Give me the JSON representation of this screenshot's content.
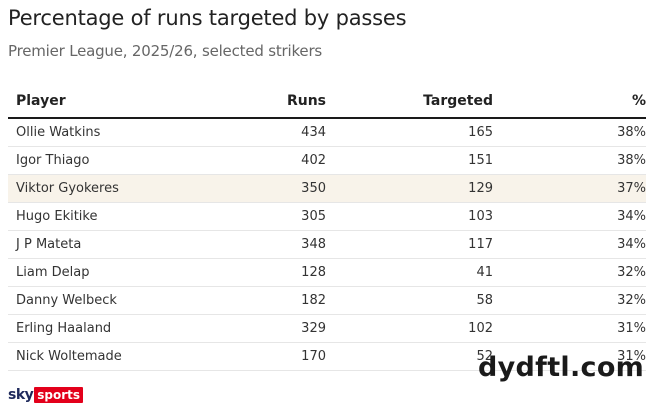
{
  "chart_data": {
    "type": "table",
    "title": "Percentage of runs targeted by passes",
    "subtitle": "Premier League, 2025/26, selected strikers",
    "columns": [
      "Player",
      "Runs",
      "Targeted",
      "%"
    ],
    "highlight_color": "#f8f3ea",
    "rows": [
      {
        "player": "Ollie Watkins",
        "runs": "434",
        "targeted": "165",
        "pct": "38%",
        "highlight": false
      },
      {
        "player": "Igor Thiago",
        "runs": "402",
        "targeted": "151",
        "pct": "38%",
        "highlight": false
      },
      {
        "player": "Viktor Gyokeres",
        "runs": "350",
        "targeted": "129",
        "pct": "37%",
        "highlight": true
      },
      {
        "player": "Hugo Ekitike",
        "runs": "305",
        "targeted": "103",
        "pct": "34%",
        "highlight": false
      },
      {
        "player": "J P Mateta",
        "runs": "348",
        "targeted": "117",
        "pct": "34%",
        "highlight": false
      },
      {
        "player": "Liam Delap",
        "runs": "128",
        "targeted": "41",
        "pct": "32%",
        "highlight": false
      },
      {
        "player": "Danny Welbeck",
        "runs": "182",
        "targeted": "58",
        "pct": "32%",
        "highlight": false
      },
      {
        "player": "Erling Haaland",
        "runs": "329",
        "targeted": "102",
        "pct": "31%",
        "highlight": false
      },
      {
        "player": "Nick Woltemade",
        "runs": "170",
        "targeted": "52",
        "pct": "31%",
        "highlight": false
      }
    ]
  },
  "branding": {
    "logo_sky": "sky",
    "logo_sports": "sports",
    "logo_color": "#e3001b",
    "watermark": "dydftl.com"
  }
}
